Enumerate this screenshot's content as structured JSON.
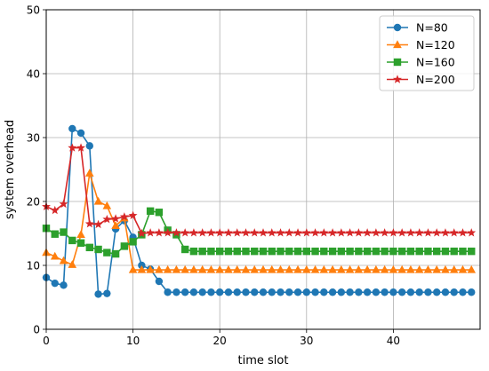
{
  "chart_data": {
    "type": "line",
    "xlabel": "time slot",
    "ylabel": "system overhead",
    "xlim": [
      0,
      50
    ],
    "ylim": [
      0,
      50
    ],
    "xticks": [
      0,
      10,
      20,
      30,
      40
    ],
    "yticks": [
      0,
      10,
      20,
      30,
      40,
      50
    ],
    "grid": true,
    "legend_position": "top-right",
    "x": [
      0,
      1,
      2,
      3,
      4,
      5,
      6,
      7,
      8,
      9,
      10,
      11,
      12,
      13,
      14,
      15,
      16,
      17,
      18,
      19,
      20,
      21,
      22,
      23,
      24,
      25,
      26,
      27,
      28,
      29,
      30,
      31,
      32,
      33,
      34,
      35,
      36,
      37,
      38,
      39,
      40,
      41,
      42,
      43,
      44,
      45,
      46,
      47,
      48,
      49
    ],
    "series": [
      {
        "name": "N=80",
        "color": "#1f77b4",
        "marker": "circle",
        "values": [
          8.1,
          7.2,
          6.9,
          31.4,
          30.7,
          28.7,
          5.5,
          5.6,
          15.7,
          17.0,
          14.4,
          10.0,
          9.4,
          7.5,
          5.8,
          5.8,
          5.8,
          5.8,
          5.8,
          5.8,
          5.8,
          5.8,
          5.8,
          5.8,
          5.8,
          5.8,
          5.8,
          5.8,
          5.8,
          5.8,
          5.8,
          5.8,
          5.8,
          5.8,
          5.8,
          5.8,
          5.8,
          5.8,
          5.8,
          5.8,
          5.8,
          5.8,
          5.8,
          5.8,
          5.8,
          5.8,
          5.8,
          5.8,
          5.8,
          5.8
        ]
      },
      {
        "name": "N=120",
        "color": "#ff7f0e",
        "marker": "triangle",
        "values": [
          12.0,
          11.4,
          10.7,
          10.1,
          14.8,
          24.4,
          20.0,
          19.3,
          16.2,
          17.4,
          9.3,
          9.3,
          9.3,
          9.3,
          9.3,
          9.3,
          9.3,
          9.3,
          9.3,
          9.3,
          9.3,
          9.3,
          9.3,
          9.3,
          9.3,
          9.3,
          9.3,
          9.3,
          9.3,
          9.3,
          9.3,
          9.3,
          9.3,
          9.3,
          9.3,
          9.3,
          9.3,
          9.3,
          9.3,
          9.3,
          9.3,
          9.3,
          9.3,
          9.3,
          9.3,
          9.3,
          9.3,
          9.3,
          9.3,
          9.3
        ]
      },
      {
        "name": "N=160",
        "color": "#2ca02c",
        "marker": "square",
        "values": [
          15.8,
          14.9,
          15.2,
          13.9,
          13.5,
          12.8,
          12.5,
          12.0,
          11.8,
          13.0,
          13.7,
          14.8,
          18.5,
          18.3,
          15.5,
          14.8,
          12.5,
          12.2,
          12.2,
          12.2,
          12.2,
          12.2,
          12.2,
          12.2,
          12.2,
          12.2,
          12.2,
          12.2,
          12.2,
          12.2,
          12.2,
          12.2,
          12.2,
          12.2,
          12.2,
          12.2,
          12.2,
          12.2,
          12.2,
          12.2,
          12.2,
          12.2,
          12.2,
          12.2,
          12.2,
          12.2,
          12.2,
          12.2,
          12.2,
          12.2
        ]
      },
      {
        "name": "N=200",
        "color": "#d62728",
        "marker": "star",
        "values": [
          19.2,
          18.6,
          19.6,
          28.4,
          28.4,
          16.5,
          16.4,
          17.2,
          17.3,
          17.6,
          17.8,
          15.0,
          15.1,
          15.1,
          15.1,
          15.1,
          15.1,
          15.1,
          15.1,
          15.1,
          15.1,
          15.1,
          15.1,
          15.1,
          15.1,
          15.1,
          15.1,
          15.1,
          15.1,
          15.1,
          15.1,
          15.1,
          15.1,
          15.1,
          15.1,
          15.1,
          15.1,
          15.1,
          15.1,
          15.1,
          15.1,
          15.1,
          15.1,
          15.1,
          15.1,
          15.1,
          15.1,
          15.1,
          15.1,
          15.1
        ]
      }
    ]
  }
}
